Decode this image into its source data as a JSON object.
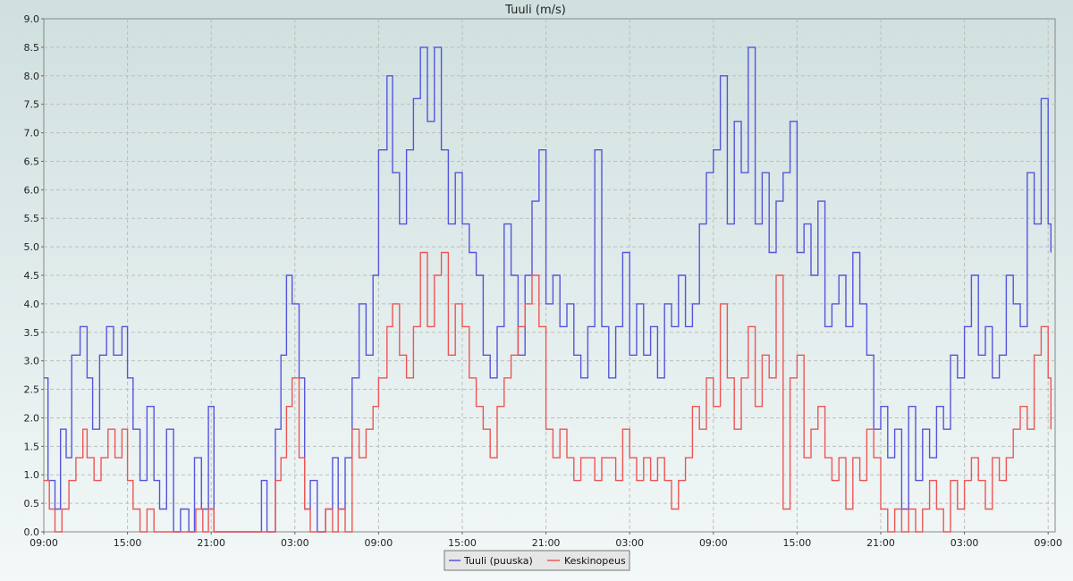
{
  "chart_data": {
    "type": "line",
    "title": "Tuuli (m/s)",
    "xlabel": "",
    "ylabel": "",
    "ylim": [
      0,
      9
    ],
    "yticks": [
      "0.0",
      "0.5",
      "1.0",
      "1.5",
      "2.0",
      "2.5",
      "3.0",
      "3.5",
      "4.0",
      "4.5",
      "5.0",
      "5.5",
      "6.0",
      "6.5",
      "7.0",
      "7.5",
      "8.0",
      "8.5",
      "9.0"
    ],
    "xlim": [
      0,
      72.5
    ],
    "xticks": [
      {
        "x": 0,
        "label": "09:00"
      },
      {
        "x": 6,
        "label": "15:00"
      },
      {
        "x": 12,
        "label": "21:00"
      },
      {
        "x": 18,
        "label": "03:00"
      },
      {
        "x": 24,
        "label": "09:00"
      },
      {
        "x": 30,
        "label": "15:00"
      },
      {
        "x": 36,
        "label": "21:00"
      },
      {
        "x": 42,
        "label": "03:00"
      },
      {
        "x": 48,
        "label": "09:00"
      },
      {
        "x": 54,
        "label": "15:00"
      },
      {
        "x": 60,
        "label": "21:00"
      },
      {
        "x": 66,
        "label": "03:00"
      },
      {
        "x": 72,
        "label": "09:00"
      }
    ],
    "grid": true,
    "legend_position": "bottom-center",
    "series": [
      {
        "name": "Tuuli (puuska)",
        "color": "#5555dd",
        "points": [
          [
            0,
            2.7
          ],
          [
            0.3,
            0.9
          ],
          [
            0.8,
            0.4
          ],
          [
            1.2,
            1.8
          ],
          [
            1.6,
            1.3
          ],
          [
            2,
            3.1
          ],
          [
            2.6,
            3.6
          ],
          [
            3.1,
            2.7
          ],
          [
            3.5,
            1.8
          ],
          [
            4,
            3.1
          ],
          [
            4.5,
            3.6
          ],
          [
            5,
            3.1
          ],
          [
            5.6,
            3.6
          ],
          [
            6,
            2.7
          ],
          [
            6.4,
            1.8
          ],
          [
            6.9,
            0.9
          ],
          [
            7.4,
            2.2
          ],
          [
            7.9,
            0.9
          ],
          [
            8.3,
            0.4
          ],
          [
            8.8,
            1.8
          ],
          [
            9.3,
            0.0
          ],
          [
            9.8,
            0.4
          ],
          [
            10.4,
            0.0
          ],
          [
            10.8,
            1.3
          ],
          [
            11.3,
            0.4
          ],
          [
            11.8,
            2.2
          ],
          [
            12.2,
            0.0
          ],
          [
            13.5,
            0.0
          ],
          [
            14.8,
            0.0
          ],
          [
            15.6,
            0.9
          ],
          [
            16,
            0.0
          ],
          [
            16.6,
            1.8
          ],
          [
            17,
            3.1
          ],
          [
            17.4,
            4.5
          ],
          [
            17.8,
            4.0
          ],
          [
            18.3,
            2.7
          ],
          [
            18.7,
            0.4
          ],
          [
            19.1,
            0.9
          ],
          [
            19.6,
            0.0
          ],
          [
            20.2,
            0.4
          ],
          [
            20.7,
            1.3
          ],
          [
            21.1,
            0.4
          ],
          [
            21.6,
            1.3
          ],
          [
            22.1,
            2.7
          ],
          [
            22.6,
            4.0
          ],
          [
            23.1,
            3.1
          ],
          [
            23.6,
            4.5
          ],
          [
            24,
            6.7
          ],
          [
            24.6,
            8.0
          ],
          [
            25,
            6.3
          ],
          [
            25.5,
            5.4
          ],
          [
            26,
            6.7
          ],
          [
            26.5,
            7.6
          ],
          [
            27,
            8.5
          ],
          [
            27.5,
            7.2
          ],
          [
            28,
            8.5
          ],
          [
            28.5,
            6.7
          ],
          [
            29,
            5.4
          ],
          [
            29.5,
            6.3
          ],
          [
            30,
            5.4
          ],
          [
            30.5,
            4.9
          ],
          [
            31,
            4.5
          ],
          [
            31.5,
            3.1
          ],
          [
            32,
            2.7
          ],
          [
            32.5,
            3.6
          ],
          [
            33,
            5.4
          ],
          [
            33.5,
            4.5
          ],
          [
            34,
            3.1
          ],
          [
            34.5,
            4.5
          ],
          [
            35,
            5.8
          ],
          [
            35.5,
            6.7
          ],
          [
            36,
            4.0
          ],
          [
            36.5,
            4.5
          ],
          [
            37,
            3.6
          ],
          [
            37.5,
            4.0
          ],
          [
            38,
            3.1
          ],
          [
            38.5,
            2.7
          ],
          [
            39,
            3.6
          ],
          [
            39.5,
            6.7
          ],
          [
            40,
            3.6
          ],
          [
            40.5,
            2.7
          ],
          [
            41,
            3.6
          ],
          [
            41.5,
            4.9
          ],
          [
            42,
            3.1
          ],
          [
            42.5,
            4.0
          ],
          [
            43,
            3.1
          ],
          [
            43.5,
            3.6
          ],
          [
            44,
            2.7
          ],
          [
            44.5,
            4.0
          ],
          [
            45,
            3.6
          ],
          [
            45.5,
            4.5
          ],
          [
            46,
            3.6
          ],
          [
            46.5,
            4.0
          ],
          [
            47,
            5.4
          ],
          [
            47.5,
            6.3
          ],
          [
            48,
            6.7
          ],
          [
            48.5,
            8.0
          ],
          [
            49,
            5.4
          ],
          [
            49.5,
            7.2
          ],
          [
            50,
            6.3
          ],
          [
            50.5,
            8.5
          ],
          [
            51,
            5.4
          ],
          [
            51.5,
            6.3
          ],
          [
            52,
            4.9
          ],
          [
            52.5,
            5.8
          ],
          [
            53,
            6.3
          ],
          [
            53.5,
            7.2
          ],
          [
            54,
            4.9
          ],
          [
            54.5,
            5.4
          ],
          [
            55,
            4.5
          ],
          [
            55.5,
            5.8
          ],
          [
            56,
            3.6
          ],
          [
            56.5,
            4.0
          ],
          [
            57,
            4.5
          ],
          [
            57.5,
            3.6
          ],
          [
            58,
            4.9
          ],
          [
            58.5,
            4.0
          ],
          [
            59,
            3.1
          ],
          [
            59.5,
            1.8
          ],
          [
            60,
            2.2
          ],
          [
            60.5,
            1.3
          ],
          [
            61,
            1.8
          ],
          [
            61.5,
            0.4
          ],
          [
            62,
            2.2
          ],
          [
            62.5,
            0.9
          ],
          [
            63,
            1.8
          ],
          [
            63.5,
            1.3
          ],
          [
            64,
            2.2
          ],
          [
            64.5,
            1.8
          ],
          [
            65,
            3.1
          ],
          [
            65.5,
            2.7
          ],
          [
            66,
            3.6
          ],
          [
            66.5,
            4.5
          ],
          [
            67,
            3.1
          ],
          [
            67.5,
            3.6
          ],
          [
            68,
            2.7
          ],
          [
            68.5,
            3.1
          ],
          [
            69,
            4.5
          ],
          [
            69.5,
            4.0
          ],
          [
            70,
            3.6
          ],
          [
            70.5,
            6.3
          ],
          [
            71,
            5.4
          ],
          [
            71.5,
            7.6
          ],
          [
            72,
            5.4
          ],
          [
            72.2,
            4.9
          ]
        ]
      },
      {
        "name": "Keskinopeus",
        "color": "#ee5555",
        "points": [
          [
            0,
            0.9
          ],
          [
            0.4,
            0.4
          ],
          [
            0.8,
            0.0
          ],
          [
            1.3,
            0.4
          ],
          [
            1.8,
            0.9
          ],
          [
            2.3,
            1.3
          ],
          [
            2.8,
            1.8
          ],
          [
            3.1,
            1.3
          ],
          [
            3.6,
            0.9
          ],
          [
            4.1,
            1.3
          ],
          [
            4.6,
            1.8
          ],
          [
            5.1,
            1.3
          ],
          [
            5.6,
            1.8
          ],
          [
            6,
            0.9
          ],
          [
            6.4,
            0.4
          ],
          [
            6.9,
            0.0
          ],
          [
            7.4,
            0.4
          ],
          [
            7.9,
            0.0
          ],
          [
            8.4,
            0.0
          ],
          [
            9.3,
            0.0
          ],
          [
            10.4,
            0.0
          ],
          [
            10.9,
            0.4
          ],
          [
            11.4,
            0.0
          ],
          [
            11.8,
            0.4
          ],
          [
            12.2,
            0.0
          ],
          [
            13.5,
            0.0
          ],
          [
            14.8,
            0.0
          ],
          [
            16,
            0.0
          ],
          [
            16.6,
            0.9
          ],
          [
            17,
            1.3
          ],
          [
            17.4,
            2.2
          ],
          [
            17.8,
            2.7
          ],
          [
            18.3,
            1.3
          ],
          [
            18.7,
            0.4
          ],
          [
            19.1,
            0.0
          ],
          [
            20.2,
            0.4
          ],
          [
            20.7,
            0.0
          ],
          [
            21.1,
            0.4
          ],
          [
            21.6,
            0.0
          ],
          [
            22.1,
            1.8
          ],
          [
            22.6,
            1.3
          ],
          [
            23.1,
            1.8
          ],
          [
            23.6,
            2.2
          ],
          [
            24,
            2.7
          ],
          [
            24.6,
            3.6
          ],
          [
            25,
            4.0
          ],
          [
            25.5,
            3.1
          ],
          [
            26,
            2.7
          ],
          [
            26.5,
            3.6
          ],
          [
            27,
            4.9
          ],
          [
            27.5,
            3.6
          ],
          [
            28,
            4.5
          ],
          [
            28.5,
            4.9
          ],
          [
            29,
            3.1
          ],
          [
            29.5,
            4.0
          ],
          [
            30,
            3.6
          ],
          [
            30.5,
            2.7
          ],
          [
            31,
            2.2
          ],
          [
            31.5,
            1.8
          ],
          [
            32,
            1.3
          ],
          [
            32.5,
            2.2
          ],
          [
            33,
            2.7
          ],
          [
            33.5,
            3.1
          ],
          [
            34,
            3.6
          ],
          [
            34.5,
            4.0
          ],
          [
            35,
            4.5
          ],
          [
            35.5,
            3.6
          ],
          [
            36,
            1.8
          ],
          [
            36.5,
            1.3
          ],
          [
            37,
            1.8
          ],
          [
            37.5,
            1.3
          ],
          [
            38,
            0.9
          ],
          [
            38.5,
            1.3
          ],
          [
            39,
            1.3
          ],
          [
            39.5,
            0.9
          ],
          [
            40,
            1.3
          ],
          [
            40.5,
            1.3
          ],
          [
            41,
            0.9
          ],
          [
            41.5,
            1.8
          ],
          [
            42,
            1.3
          ],
          [
            42.5,
            0.9
          ],
          [
            43,
            1.3
          ],
          [
            43.5,
            0.9
          ],
          [
            44,
            1.3
          ],
          [
            44.5,
            0.9
          ],
          [
            45,
            0.4
          ],
          [
            45.5,
            0.9
          ],
          [
            46,
            1.3
          ],
          [
            46.5,
            2.2
          ],
          [
            47,
            1.8
          ],
          [
            47.5,
            2.7
          ],
          [
            48,
            2.2
          ],
          [
            48.5,
            4.0
          ],
          [
            49,
            2.7
          ],
          [
            49.5,
            1.8
          ],
          [
            50,
            2.7
          ],
          [
            50.5,
            3.6
          ],
          [
            51,
            2.2
          ],
          [
            51.5,
            3.1
          ],
          [
            52,
            2.7
          ],
          [
            52.5,
            4.5
          ],
          [
            53,
            0.4
          ],
          [
            53.5,
            2.7
          ],
          [
            54,
            3.1
          ],
          [
            54.5,
            1.3
          ],
          [
            55,
            1.8
          ],
          [
            55.5,
            2.2
          ],
          [
            56,
            1.3
          ],
          [
            56.5,
            0.9
          ],
          [
            57,
            1.3
          ],
          [
            57.5,
            0.4
          ],
          [
            58,
            1.3
          ],
          [
            58.5,
            0.9
          ],
          [
            59,
            1.8
          ],
          [
            59.5,
            1.3
          ],
          [
            60,
            0.4
          ],
          [
            60.5,
            0.0
          ],
          [
            61,
            0.4
          ],
          [
            61.5,
            0.0
          ],
          [
            62,
            0.4
          ],
          [
            62.5,
            0.0
          ],
          [
            63,
            0.4
          ],
          [
            63.5,
            0.9
          ],
          [
            64,
            0.4
          ],
          [
            64.5,
            0.0
          ],
          [
            65,
            0.9
          ],
          [
            65.5,
            0.4
          ],
          [
            66,
            0.9
          ],
          [
            66.5,
            1.3
          ],
          [
            67,
            0.9
          ],
          [
            67.5,
            0.4
          ],
          [
            68,
            1.3
          ],
          [
            68.5,
            0.9
          ],
          [
            69,
            1.3
          ],
          [
            69.5,
            1.8
          ],
          [
            70,
            2.2
          ],
          [
            70.5,
            1.8
          ],
          [
            71,
            3.1
          ],
          [
            71.5,
            3.6
          ],
          [
            72,
            2.7
          ],
          [
            72.2,
            1.8
          ]
        ]
      }
    ]
  }
}
